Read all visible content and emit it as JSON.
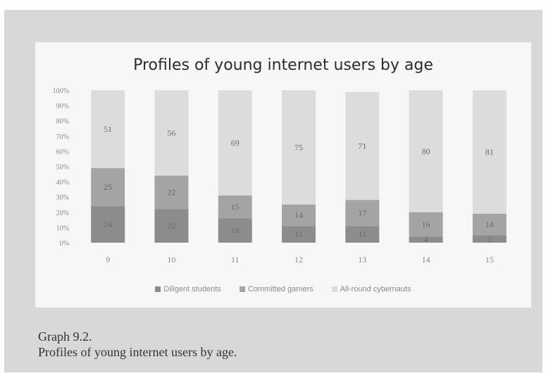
{
  "chart_data": {
    "type": "bar",
    "stacked": true,
    "percent": true,
    "title": "Profiles of young internet users by age",
    "categories": [
      "9",
      "10",
      "11",
      "12",
      "13",
      "14",
      "15"
    ],
    "series": [
      {
        "name": "Diligent students",
        "values": [
          24,
          22,
          16,
          11,
          11,
          4,
          5
        ],
        "color": "#8c8c8c"
      },
      {
        "name": "Committed gamers",
        "values": [
          25,
          22,
          15,
          14,
          17,
          16,
          14
        ],
        "color": "#a4a4a4"
      },
      {
        "name": "All-round cybernauts",
        "values": [
          51,
          56,
          69,
          75,
          71,
          80,
          81
        ],
        "color": "#dcdcdc"
      }
    ],
    "yticks": [
      "0%",
      "10%",
      "20%",
      "30%",
      "40%",
      "50%",
      "60%",
      "70%",
      "80%",
      "90%",
      "100%"
    ],
    "ylim": [
      0,
      100
    ],
    "legend_position": "bottom",
    "grid": false
  },
  "caption": {
    "line1": "Graph 9.2.",
    "line2": "Profiles of young internet users by age."
  }
}
